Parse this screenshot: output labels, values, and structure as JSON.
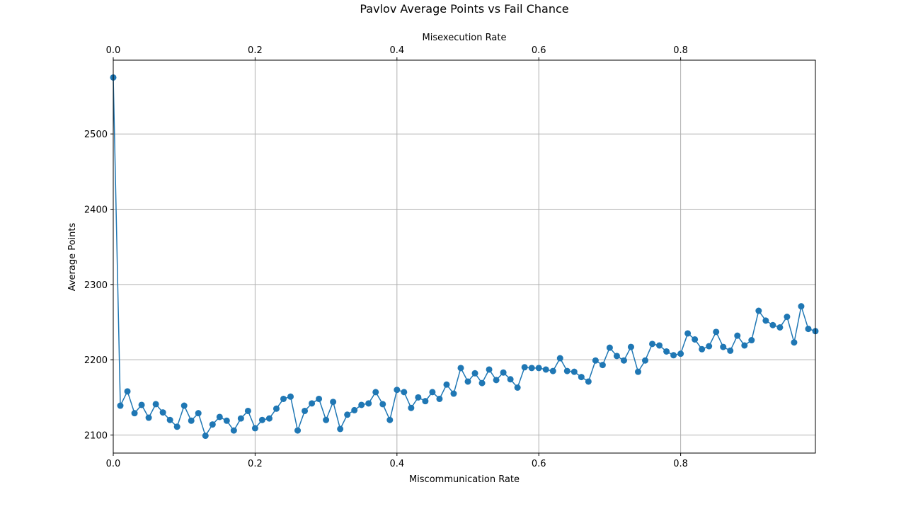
{
  "chart_data": {
    "type": "line",
    "title": "Pavlov Average Points vs Fail Chance",
    "xlabel": "Miscommunication Rate",
    "x2label": "Misexecution Rate",
    "ylabel": "Average Points",
    "xlim": [
      0,
      0.99
    ],
    "ylim": [
      2076,
      2598
    ],
    "xticks": [
      0.0,
      0.2,
      0.4,
      0.6,
      0.8
    ],
    "xtick_labels": [
      "0.0",
      "0.2",
      "0.4",
      "0.6",
      "0.8"
    ],
    "x2ticks": [
      0.0,
      0.2,
      0.4,
      0.6,
      0.8
    ],
    "x2tick_labels": [
      "0.0",
      "0.2",
      "0.4",
      "0.6",
      "0.8"
    ],
    "yticks": [
      2100,
      2200,
      2300,
      2400,
      2500
    ],
    "ytick_labels": [
      "2100",
      "2200",
      "2300",
      "2400",
      "2500"
    ],
    "grid": true,
    "line_color": "#1f77b4",
    "series": [
      {
        "x": [
          0.0,
          0.01,
          0.02,
          0.03,
          0.04,
          0.05,
          0.06,
          0.07,
          0.08,
          0.09,
          0.1,
          0.11,
          0.12,
          0.13,
          0.14,
          0.15,
          0.16,
          0.17,
          0.18,
          0.19,
          0.2,
          0.21,
          0.22,
          0.23,
          0.24,
          0.25,
          0.26,
          0.27,
          0.28,
          0.29,
          0.3,
          0.31,
          0.32,
          0.33,
          0.34,
          0.35,
          0.36,
          0.37,
          0.38,
          0.39,
          0.4,
          0.41,
          0.42,
          0.43,
          0.44,
          0.45,
          0.46,
          0.47,
          0.48,
          0.49,
          0.5,
          0.51,
          0.52,
          0.53,
          0.54,
          0.55,
          0.56,
          0.57,
          0.58,
          0.59,
          0.6,
          0.61,
          0.62,
          0.63,
          0.64,
          0.65,
          0.66,
          0.67,
          0.68,
          0.69,
          0.7,
          0.71,
          0.72,
          0.73,
          0.74,
          0.75,
          0.76,
          0.77,
          0.78,
          0.79,
          0.8,
          0.81,
          0.82,
          0.83,
          0.84,
          0.85,
          0.86,
          0.87,
          0.88,
          0.89,
          0.9,
          0.91,
          0.92,
          0.93,
          0.94,
          0.95,
          0.96,
          0.97,
          0.98,
          0.99
        ],
        "y": [
          2575,
          2139,
          2158,
          2129,
          2140,
          2123,
          2141,
          2130,
          2120,
          2111,
          2139,
          2119,
          2129,
          2099,
          2114,
          2124,
          2119,
          2106,
          2122,
          2132,
          2109,
          2120,
          2122,
          2135,
          2148,
          2151,
          2106,
          2132,
          2142,
          2148,
          2120,
          2144,
          2108,
          2127,
          2133,
          2140,
          2142,
          2157,
          2141,
          2120,
          2160,
          2157,
          2136,
          2150,
          2145,
          2157,
          2148,
          2167,
          2155,
          2189,
          2171,
          2182,
          2169,
          2187,
          2173,
          2183,
          2174,
          2163,
          2190,
          2189,
          2189,
          2187,
          2185,
          2202,
          2185,
          2184,
          2177,
          2171,
          2199,
          2193,
          2216,
          2205,
          2199,
          2217,
          2184,
          2199,
          2221,
          2219,
          2211,
          2206,
          2208,
          2235,
          2227,
          2214,
          2218,
          2237,
          2217,
          2212,
          2232,
          2219,
          2226,
          2265,
          2252,
          2246,
          2243,
          2257,
          2223,
          2271,
          2241,
          2238
        ]
      }
    ]
  }
}
